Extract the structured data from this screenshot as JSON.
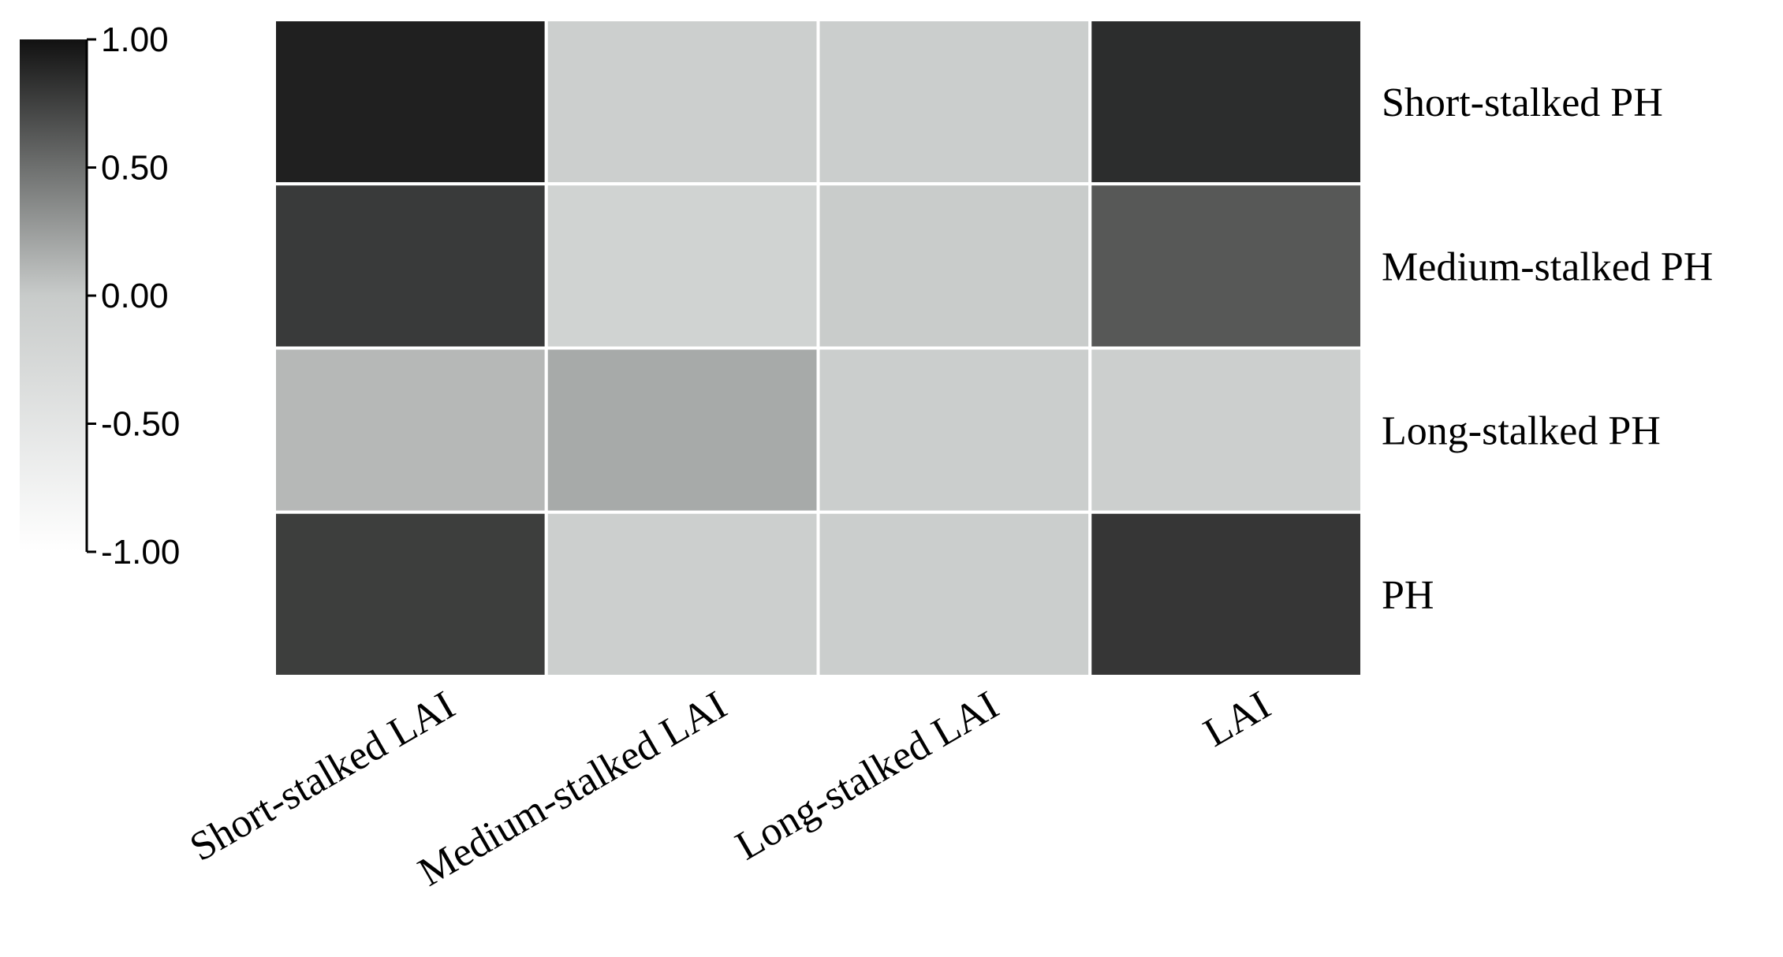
{
  "chart_data": {
    "type": "heatmap",
    "title": "",
    "xlabel": "",
    "ylabel": "",
    "rows": [
      "Short-stalked PH",
      "Medium-stalked PH",
      "Long-stalked PH",
      "PH"
    ],
    "columns": [
      "Short-stalked LAI",
      "Medium-stalked LAI",
      "Long-stalked LAI",
      "LAI"
    ],
    "values": [
      [
        0.92,
        -0.08,
        -0.05,
        0.85
      ],
      [
        0.78,
        -0.15,
        -0.02,
        0.62
      ],
      [
        0.1,
        0.18,
        -0.05,
        -0.08
      ],
      [
        0.76,
        -0.08,
        -0.05,
        0.8
      ]
    ],
    "colorbar": {
      "min": -1.0,
      "max": 1.0,
      "ticks": [
        1.0,
        0.5,
        0.0,
        -0.5,
        -1.0
      ],
      "tick_labels": [
        "1.00",
        "0.50",
        "0.00",
        "-0.50",
        "-1.00"
      ],
      "placement": "left"
    },
    "colormap": {
      "low": "#ffffff",
      "mid": "#c8cbca",
      "high": "#111111"
    },
    "grid_line_color": "#ffffff"
  }
}
